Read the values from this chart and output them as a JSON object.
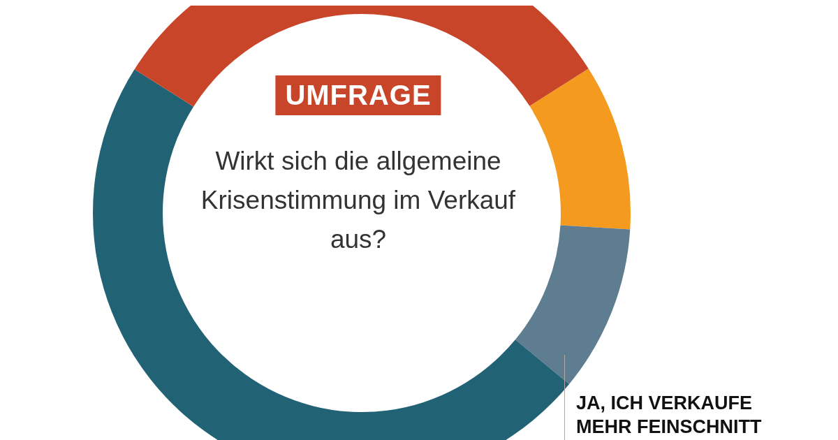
{
  "chart_data": {
    "type": "donut",
    "title": "Wirkt sich die allgemeine Krisenstimmung im Verkauf aus?",
    "annotations": [
      "UMFRAGE"
    ],
    "categories": [
      null,
      "JA, ICH VERKAUFE MEHR FEINSCHNITT",
      null,
      null
    ],
    "values": [
      10,
      10,
      48,
      32
    ],
    "colors": [
      "#f39a1f",
      "#5f7d91",
      "#226275",
      "#c9452a"
    ],
    "legend": false
  }
}
